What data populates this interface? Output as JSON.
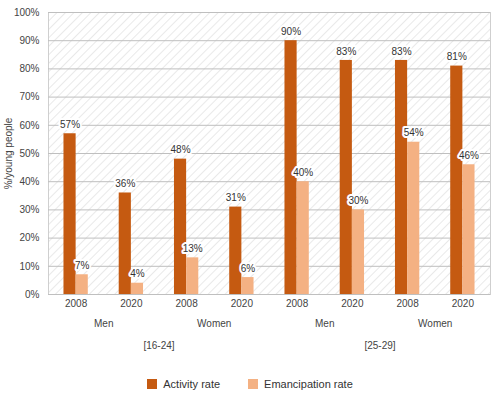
{
  "chart_data": {
    "type": "bar",
    "ylabel": "%/young people",
    "categories": [
      "2008",
      "2020",
      "2008",
      "2020",
      "2008",
      "2020",
      "2008",
      "2020"
    ],
    "category_groups": [
      [
        "Men",
        "Men",
        "Women",
        "Women",
        "Men",
        "Men",
        "Women",
        "Women"
      ],
      [
        "[16-24]",
        "[16-24]",
        "[16-24]",
        "[16-24]",
        "[25-29]",
        "[25-29]",
        "[25-29]",
        "[25-29]"
      ]
    ],
    "series": [
      {
        "name": "Activity rate",
        "color": "#C55A11",
        "values": [
          57,
          36,
          48,
          31,
          90,
          83,
          83,
          81
        ],
        "value_labels": [
          "57%",
          "36%",
          "48%",
          "31%",
          "90%",
          "83%",
          "83%",
          "81%"
        ]
      },
      {
        "name": "Emancipation rate",
        "color": "#F4B183",
        "values": [
          7,
          4,
          13,
          6,
          40,
          30,
          54,
          46
        ],
        "value_labels": [
          "7%",
          "4%",
          "13%",
          "6%",
          "40%",
          "30%",
          "54%",
          "46%"
        ]
      }
    ],
    "ylim": [
      0,
      100
    ],
    "yticks": [
      {
        "value": 0,
        "label": "0%"
      },
      {
        "value": 10,
        "label": "10%"
      },
      {
        "value": 20,
        "label": "20%"
      },
      {
        "value": 30,
        "label": "30%"
      },
      {
        "value": 40,
        "label": "40%"
      },
      {
        "value": 50,
        "label": "50%"
      },
      {
        "value": 60,
        "label": "60%"
      },
      {
        "value": 70,
        "label": "70%"
      },
      {
        "value": 80,
        "label": "80%"
      },
      {
        "value": 90,
        "label": "90%"
      },
      {
        "value": 100,
        "label": "100%"
      }
    ],
    "grid": true,
    "data_labels": true,
    "legend": "bottom"
  }
}
